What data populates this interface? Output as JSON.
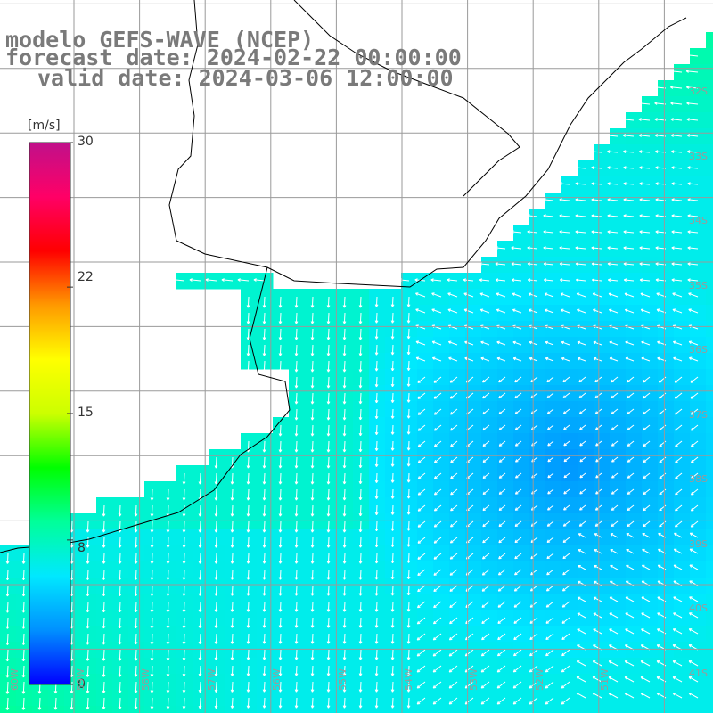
{
  "title": {
    "line1": "modelo GEFS-WAVE (NCEP)",
    "line2": "forecast date: 2024-02-22 00:00:00",
    "line3": "valid date: 2024-03-06 12:00:00"
  },
  "colorbar": {
    "unit": "[m/s]",
    "ticks": [
      "30",
      "22",
      "15",
      "8",
      "0"
    ],
    "tick_values": [
      30,
      22,
      15,
      8,
      0
    ],
    "min": 0,
    "max": 30,
    "colors": [
      "#0000ff",
      "#0090ff",
      "#00e8ff",
      "#00ff9a",
      "#00ff00",
      "#ccff00",
      "#ffff00",
      "#ff9900",
      "#ff0000",
      "#ff0066",
      "#c0108a"
    ]
  },
  "grid": {
    "lat_labels": [
      "32S",
      "33S",
      "34S",
      "35S",
      "36S",
      "37S",
      "38S",
      "39S",
      "40S",
      "41S"
    ],
    "lon_labels": [
      "60W",
      "59W",
      "58W",
      "57W",
      "56W",
      "55W",
      "54W",
      "53W",
      "52W",
      "51W"
    ]
  },
  "field": {
    "quantity": "wind speed",
    "unit": "m/s",
    "scalar_range_shown": [
      3,
      11
    ],
    "colors": {
      "land": "#ffffff",
      "coast": "#000000",
      "grid": "#9a9a9a",
      "arrow": "#ffffff"
    }
  }
}
